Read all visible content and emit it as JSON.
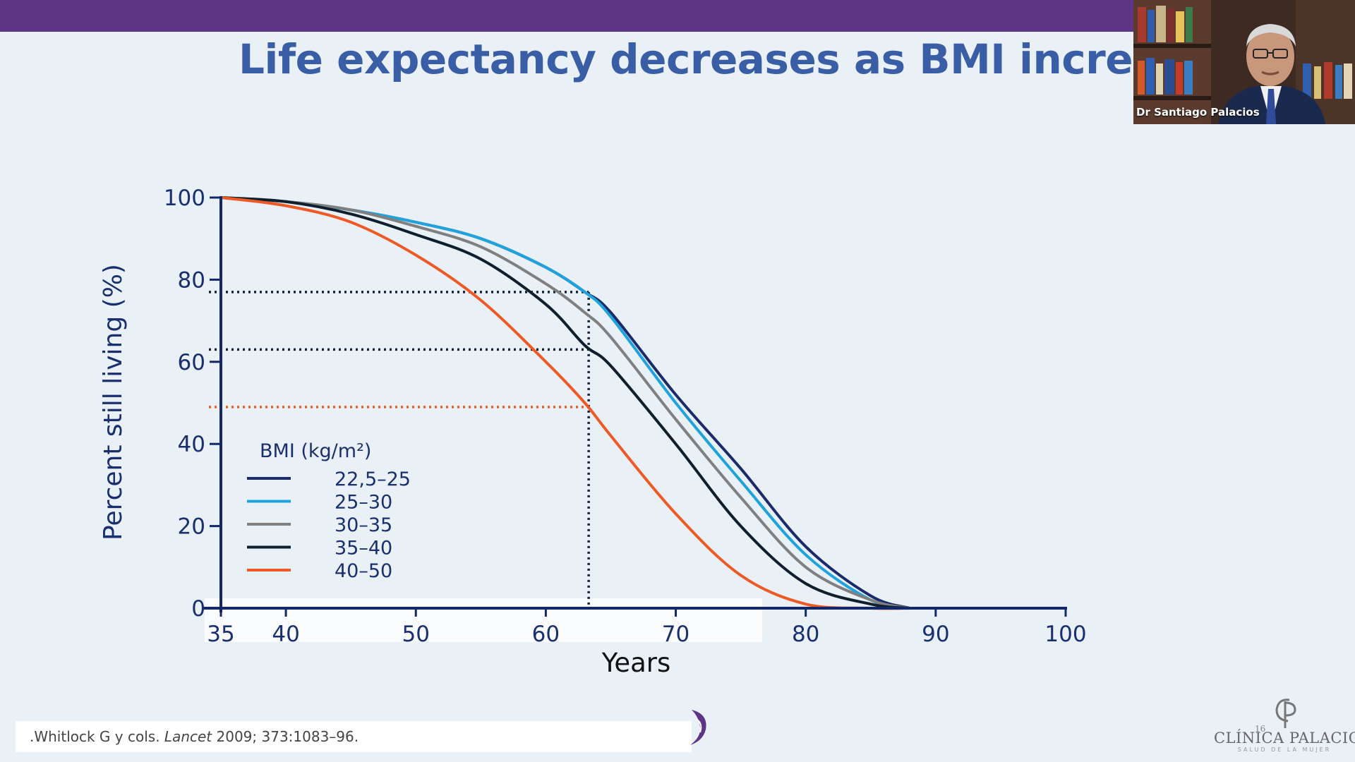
{
  "slide": {
    "title": "Life expectancy decreases as BMI increase",
    "page_number": "16"
  },
  "video": {
    "speaker_name": "Dr Santiago Palacios"
  },
  "citation": {
    "prefix": ".Whitlock G y cols. ",
    "journal": "Lancet",
    "suffix": " 2009; 373:1083–96."
  },
  "footer": {
    "clinic_name": "CLÍNICA PALACIOS",
    "clinic_tagline": "SALUD DE LA MUJER",
    "clinic_monogram": "CP"
  },
  "chart_data": {
    "type": "line",
    "title": "Life expectancy decreases as BMI increase",
    "xlabel": "Years",
    "ylabel": "Percent still living (%)",
    "xlim": [
      35,
      100
    ],
    "ylim": [
      0,
      100
    ],
    "x_ticks": [
      35,
      40,
      50,
      60,
      70,
      80,
      90,
      100
    ],
    "y_ticks": [
      0,
      20,
      40,
      60,
      80,
      100
    ],
    "legend_title": "BMI (kg/m²)",
    "legend_position": "bottom-left",
    "colors": {
      "axis": "#13286b",
      "axis_text": "#1a2f6e",
      "ref_dark": "#13223a",
      "ref_orange": "#ee5a26"
    },
    "series": [
      {
        "name": "22,5–25",
        "color": "#1b2a6b",
        "x": [
          35,
          40,
          45,
          50,
          55,
          60,
          63,
          65,
          70,
          75,
          80,
          85,
          88
        ],
        "values": [
          100,
          99,
          97,
          94,
          90,
          83,
          77,
          72,
          52,
          34,
          15,
          3,
          0
        ]
      },
      {
        "name": "25–30",
        "color": "#1fa3dc",
        "x": [
          35,
          40,
          45,
          50,
          55,
          60,
          63,
          65,
          70,
          75,
          80,
          85,
          88
        ],
        "values": [
          100,
          99,
          97,
          94,
          90,
          83,
          77,
          71,
          50,
          31,
          13,
          2,
          0
        ]
      },
      {
        "name": "30–35",
        "color": "#808080",
        "x": [
          35,
          40,
          45,
          50,
          55,
          60,
          63,
          65,
          70,
          75,
          80,
          85,
          88
        ],
        "values": [
          100,
          99,
          97,
          93,
          88,
          79,
          72,
          66,
          46,
          27,
          10,
          2,
          0
        ]
      },
      {
        "name": "35–40",
        "color": "#0f1f2e",
        "x": [
          35,
          40,
          45,
          50,
          55,
          60,
          63,
          65,
          70,
          75,
          80,
          85,
          88
        ],
        "values": [
          100,
          99,
          96,
          91,
          85,
          74,
          64,
          59,
          40,
          20,
          6,
          1,
          0
        ]
      },
      {
        "name": "40–50",
        "color": "#ee5a26",
        "x": [
          35,
          40,
          45,
          50,
          55,
          60,
          63,
          65,
          70,
          75,
          80,
          85,
          88
        ],
        "values": [
          100,
          98,
          94,
          86,
          75,
          60,
          50,
          42,
          23,
          8,
          1,
          0,
          0
        ]
      }
    ],
    "reference_lines": [
      {
        "type": "horizontal",
        "y": 77,
        "x_end": 63.3,
        "style": "dotted",
        "color": "dark"
      },
      {
        "type": "horizontal",
        "y": 63,
        "x_end": 63.3,
        "style": "dotted",
        "color": "dark"
      },
      {
        "type": "horizontal",
        "y": 49,
        "x_end": 63.3,
        "style": "dotted",
        "color": "orange"
      },
      {
        "type": "vertical",
        "x": 63.3,
        "y_top": 77,
        "style": "dotted",
        "color": "dark"
      }
    ]
  }
}
